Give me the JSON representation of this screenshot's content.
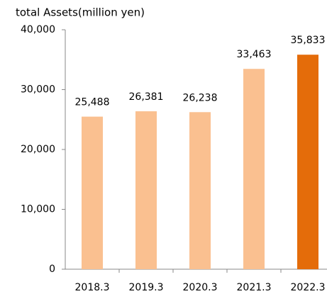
{
  "chart_data": {
    "type": "bar",
    "title": "total Assets(million yen)",
    "categories": [
      "2018.3",
      "2019.3",
      "2020.3",
      "2021.3",
      "2022.3"
    ],
    "values": [
      25488,
      26381,
      26238,
      33463,
      35833
    ],
    "value_labels": [
      "25,488",
      "26,381",
      "26,238",
      "33,463",
      "35,833"
    ],
    "colors": [
      "#fac090",
      "#fac090",
      "#fac090",
      "#fac090",
      "#e46c0a"
    ],
    "ylim": [
      0,
      40000
    ],
    "yticks": [
      0,
      {
        "value": 10000,
        "label": "10,000"
      },
      {
        "value": 20000,
        "label": "20,000"
      },
      {
        "value": 30000,
        "label": "30,000"
      },
      {
        "value": 40000,
        "label": "40,000"
      }
    ],
    "grid": false
  }
}
